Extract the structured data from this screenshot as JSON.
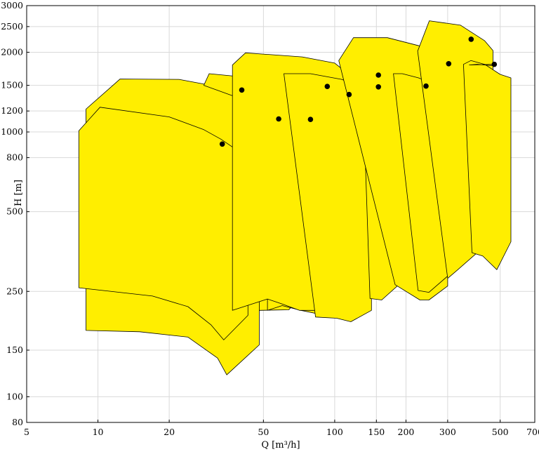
{
  "chart_data": {
    "type": "area",
    "title": "",
    "xlabel": "Q [m³/h]",
    "ylabel": "H [m]",
    "x_scale": "log",
    "y_scale": "log",
    "xlim": [
      5,
      700
    ],
    "ylim": [
      80,
      3000
    ],
    "x_ticks": [
      5,
      10,
      20,
      50,
      100,
      150,
      200,
      300,
      500,
      700
    ],
    "y_ticks": [
      80,
      100,
      150,
      250,
      500,
      800,
      1000,
      1200,
      1500,
      2000,
      2500,
      3000
    ],
    "grid": true,
    "fill_color": "#ffee00",
    "marker_color": "#000000",
    "series": [
      {
        "outline": [
          [
            8.9,
            1220
          ],
          [
            12.4,
            1585
          ],
          [
            22,
            1580
          ],
          [
            30,
            1500
          ],
          [
            37,
            1400
          ],
          [
            43,
            1300
          ],
          [
            48,
            1200
          ],
          [
            48,
            157
          ],
          [
            35,
            121
          ],
          [
            32,
            140
          ],
          [
            24,
            168
          ],
          [
            15,
            176
          ],
          [
            8.9,
            178
          ]
        ],
        "best_efficiency_point": [
          40.5,
          1440
        ]
      },
      {
        "outline": [
          [
            8.3,
            1010
          ],
          [
            10.2,
            1240
          ],
          [
            20,
            1140
          ],
          [
            28,
            1020
          ],
          [
            33,
            940
          ],
          [
            39,
            850
          ],
          [
            43,
            790
          ],
          [
            43,
            203
          ],
          [
            34,
            164
          ],
          [
            30,
            187
          ],
          [
            24,
            219
          ],
          [
            17,
            240
          ],
          [
            8.3,
            258
          ]
        ],
        "best_efficiency_point": [
          33.5,
          900
        ]
      },
      {
        "outline": [
          [
            28,
            1500
          ],
          [
            29.5,
            1660
          ],
          [
            45,
            1600
          ],
          [
            60,
            1500
          ],
          [
            68,
            1340
          ],
          [
            71,
            1230
          ],
          [
            71,
            236
          ],
          [
            64,
            213
          ],
          [
            48,
            212
          ],
          [
            48,
            1260
          ]
        ],
        "best_efficiency_point": [
          58,
          1120
        ]
      },
      {
        "outline": [
          [
            52,
            1640
          ],
          [
            56,
            1700
          ],
          [
            72,
            1660
          ],
          [
            85,
            1560
          ],
          [
            97,
            1460
          ],
          [
            103,
            1360
          ],
          [
            103,
            232
          ],
          [
            91,
            203
          ],
          [
            72,
            212
          ],
          [
            60,
            221
          ],
          [
            52,
            212
          ]
        ],
        "best_efficiency_point": [
          79,
          1115
        ]
      },
      {
        "outline": [
          [
            37,
            1790
          ],
          [
            42,
            1990
          ],
          [
            73,
            1920
          ],
          [
            100,
            1820
          ],
          [
            115,
            1650
          ],
          [
            121,
            1530
          ],
          [
            121,
            235
          ],
          [
            101,
            202
          ],
          [
            88,
            212
          ],
          [
            71,
            212
          ],
          [
            60,
            224
          ],
          [
            52,
            234
          ],
          [
            37,
            212
          ]
        ],
        "best_efficiency_point": [
          93,
          1485
        ]
      },
      {
        "outline": [
          [
            61,
            1660
          ],
          [
            79,
            1660
          ],
          [
            107,
            1580
          ],
          [
            128,
            1490
          ],
          [
            138,
            1360
          ],
          [
            143,
            1270
          ],
          [
            143,
            212
          ],
          [
            117,
            192
          ],
          [
            102,
            198
          ],
          [
            83,
            200
          ]
        ],
        "best_efficiency_point": [
          115,
          1385
        ]
      },
      {
        "outline": [
          [
            132,
            1320
          ],
          [
            147,
            1650
          ],
          [
            160,
            1620
          ],
          [
            183,
            1490
          ],
          [
            189,
            1460
          ],
          [
            189,
            268
          ],
          [
            158,
            232
          ],
          [
            141,
            235
          ]
        ],
        "best_efficiency_point": [
          153,
          1480
        ]
      },
      {
        "outline": [
          [
            104,
            1860
          ],
          [
            120,
            2270
          ],
          [
            167,
            2270
          ],
          [
            230,
            2110
          ],
          [
            280,
            1830
          ],
          [
            300,
            1650
          ],
          [
            300,
            262
          ],
          [
            250,
            232
          ],
          [
            229,
            232
          ],
          [
            180,
            265
          ]
        ],
        "best_efficiency_point": [
          153,
          1640
        ]
      },
      {
        "outline": [
          [
            177,
            1660
          ],
          [
            193,
            1660
          ],
          [
            226,
            1600
          ],
          [
            270,
            1500
          ],
          [
            290,
            1400
          ],
          [
            300,
            1300
          ],
          [
            306,
            1270
          ],
          [
            306,
            290
          ],
          [
            250,
            248
          ],
          [
            225,
            252
          ]
        ],
        "best_efficiency_point": [
          243,
          1490
        ]
      },
      {
        "outline": [
          [
            224,
            2020
          ],
          [
            251,
            2630
          ],
          [
            340,
            2530
          ],
          [
            430,
            2210
          ],
          [
            466,
            2030
          ],
          [
            466,
            410
          ],
          [
            400,
            350
          ],
          [
            330,
            301
          ],
          [
            300,
            280
          ]
        ],
        "best_efficiency_point": [
          377,
          2240
        ]
      },
      {
        "outline": [
          [
            350,
            1800
          ],
          [
            376,
            1860
          ],
          [
            430,
            1800
          ],
          [
            500,
            1650
          ],
          [
            555,
            1600
          ],
          [
            555,
            385
          ],
          [
            484,
            302
          ],
          [
            422,
            340
          ],
          [
            380,
            350
          ]
        ],
        "best_efficiency_point": [
          303,
          1810
        ]
      },
      {
        "outline": [
          [
            370,
            1790
          ],
          [
            400,
            1800
          ],
          [
            466,
            1780
          ],
          [
            466,
            1800
          ]
        ],
        "best_efficiency_point": [
          472,
          1800
        ]
      }
    ]
  }
}
